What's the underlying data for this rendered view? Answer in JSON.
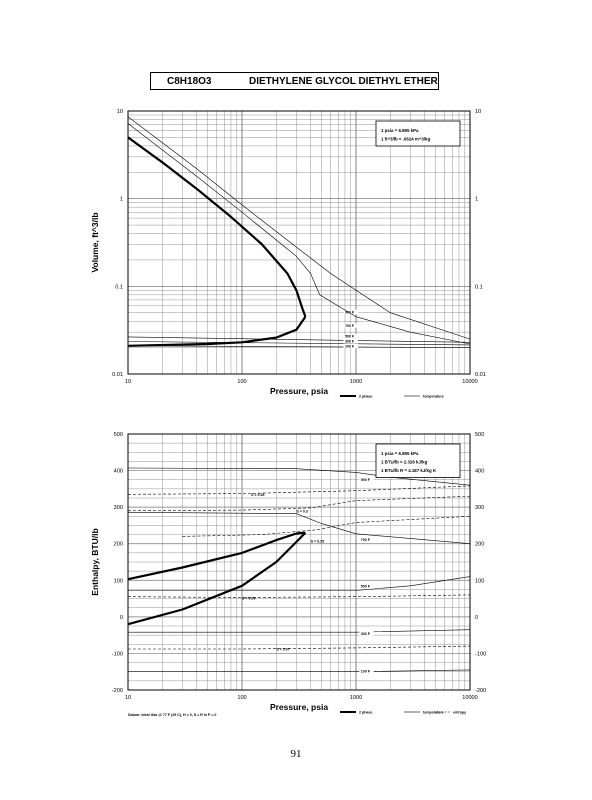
{
  "title": {
    "formula": "C8H18O3",
    "name": "DIETHYLENE GLYCOL DIETHYL ETHER"
  },
  "page_number": "91",
  "chart_data": [
    {
      "type": "line",
      "xscale": "log",
      "yscale": "log",
      "xlim": [
        10,
        10000
      ],
      "ylim": [
        0.01,
        10
      ],
      "xlabel": "Pressure,  psia",
      "ylabel": "Volume, ft^3/lb",
      "x_ticks": [
        "10",
        "100",
        "1000",
        "10000"
      ],
      "y_ticks": [
        "0.01",
        "0.1",
        "1",
        "10"
      ],
      "y_ticks_right": [
        "0.01",
        "0.1",
        "1",
        "10"
      ],
      "legend": {
        "position": "bottom-right",
        "entries": [
          "2 phase",
          "temperature"
        ]
      },
      "note_box": [
        "1 psia  =  6.895 kPa",
        "1 ft^3/lb  =  .0624 m^3/kg"
      ],
      "phase_envelope": {
        "label": "2 phase",
        "vapor_x": [
          10,
          20,
          40,
          80,
          150,
          250,
          300,
          340,
          360
        ],
        "vapor_y": [
          5.0,
          2.6,
          1.3,
          0.62,
          0.3,
          0.14,
          0.09,
          0.055,
          0.045
        ],
        "liquid_x": [
          10,
          50,
          100,
          200,
          300,
          360
        ],
        "liquid_y": [
          0.021,
          0.022,
          0.023,
          0.026,
          0.032,
          0.045
        ]
      },
      "isotherms": [
        {
          "label": "900 F",
          "x": [
            10,
            40,
            100,
            300,
            600,
            1000,
            2000,
            10000
          ],
          "y": [
            8.6,
            2.2,
            0.85,
            0.28,
            0.14,
            0.09,
            0.05,
            0.025
          ],
          "label_x": 800,
          "label_y": 0.05
        },
        {
          "label": "700 F",
          "x": [
            10,
            40,
            100,
            300,
            400,
            480,
            1000,
            3000,
            10000
          ],
          "y": [
            7.2,
            1.8,
            0.7,
            0.22,
            0.14,
            0.08,
            0.045,
            0.03,
            0.022
          ],
          "label_x": 800,
          "label_y": 0.035
        },
        {
          "label": "500 F",
          "x": [
            10,
            10000
          ],
          "y": [
            0.0265,
            0.023
          ],
          "label_x": 800,
          "label_y": 0.0265
        },
        {
          "label": "300 F",
          "x": [
            10,
            10000
          ],
          "y": [
            0.0235,
            0.0215
          ],
          "label_x": 800,
          "label_y": 0.0235
        },
        {
          "label": "100 F",
          "x": [
            10,
            10000
          ],
          "y": [
            0.021,
            0.02
          ],
          "label_x": 800,
          "label_y": 0.0205
        }
      ]
    },
    {
      "type": "line",
      "xscale": "log",
      "yscale": "linear",
      "xlim": [
        10,
        10000
      ],
      "ylim": [
        -200,
        500
      ],
      "xlabel": "Pressure,  psia",
      "ylabel": "Enthalpy, BTU/lb",
      "x_ticks": [
        "10",
        "100",
        "1000",
        "10000"
      ],
      "y_ticks": [
        "-200",
        "-100",
        "0",
        "100",
        "200",
        "300",
        "400",
        "500"
      ],
      "y_ticks_right": [
        "-200",
        "-100",
        "0",
        "100",
        "200",
        "300",
        "400",
        "500"
      ],
      "legend": {
        "position": "bottom-right",
        "entries": [
          "2 phase",
          "temperature",
          "entropy"
        ]
      },
      "note_box": [
        "1 psia  =  6.895 kPa",
        "1 BTU/lb  =  2.326 kJ/kg",
        "1 BTU/lb R  =  4.187 kJ/kg K"
      ],
      "datum_note": "Datum: Ideal Gas @ 77 F (25 C),  H = 0,  S = R ln P = 0",
      "phase_envelope": {
        "label": "2 phase",
        "vapor_x": [
          10,
          30,
          100,
          200,
          300,
          360
        ],
        "vapor_y": [
          103,
          135,
          175,
          210,
          228,
          230
        ],
        "liquid_x": [
          10,
          30,
          100,
          200,
          300,
          360
        ],
        "liquid_y": [
          -20,
          20,
          85,
          150,
          205,
          230
        ]
      },
      "isotherms": [
        {
          "label": "900 F",
          "x": [
            10,
            300,
            1000,
            2000,
            10000
          ],
          "y": [
            407,
            405,
            395,
            382,
            360
          ],
          "label_x": 1100,
          "label_y": 373
        },
        {
          "label": "700 F",
          "x": [
            10,
            300,
            500,
            1000,
            10000
          ],
          "y": [
            286,
            282,
            255,
            227,
            200
          ],
          "label_x": 1100,
          "label_y": 210
        },
        {
          "label": "500 F",
          "x": [
            10,
            1000,
            3000,
            10000
          ],
          "y": [
            72,
            72,
            85,
            110
          ],
          "label_x": 1100,
          "label_y": 82
        },
        {
          "label": "300 F",
          "x": [
            10,
            1000,
            10000
          ],
          "y": [
            -42,
            -42,
            -35
          ],
          "label_x": 1100,
          "label_y": -47
        },
        {
          "label": "100 F",
          "x": [
            10,
            1000,
            10000
          ],
          "y": [
            -150,
            -150,
            -145
          ],
          "label_x": 1100,
          "label_y": -150
        }
      ],
      "entropy_lines": [
        {
          "label": "S = 0.36",
          "x": [
            10,
            100,
            1000,
            10000
          ],
          "y": [
            335,
            337,
            345,
            358
          ],
          "label_x": 120,
          "label_y": 334
        },
        {
          "label": "S = 0.3",
          "x": [
            10,
            100,
            400,
            1000,
            10000
          ],
          "y": [
            290,
            292,
            298,
            318,
            330
          ],
          "label_x": 300,
          "label_y": 290
        },
        {
          "label": "S = 0.25",
          "x": [
            30,
            150,
            450,
            1000,
            10000
          ],
          "y": [
            220,
            225,
            238,
            258,
            275
          ],
          "label_x": 400,
          "label_y": 208
        },
        {
          "label": "S = 0.09",
          "x": [
            10,
            100,
            1000,
            10000
          ],
          "y": [
            55,
            53,
            55,
            60
          ],
          "label_x": 100,
          "label_y": 52
        },
        {
          "label": "S = 0.07",
          "x": [
            10,
            100,
            1000,
            10000
          ],
          "y": [
            -88,
            -88,
            -85,
            -80
          ],
          "label_x": 200,
          "label_y": -88
        }
      ]
    }
  ]
}
